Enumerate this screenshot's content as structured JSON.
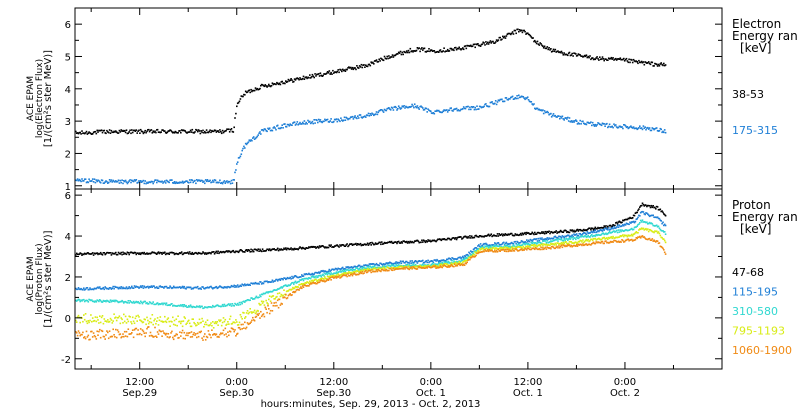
{
  "figure": {
    "xlabel": "hours:minutes, Sep. 29, 2013 - Oct.  2, 2013",
    "x_ticks": [
      {
        "x": 12,
        "time": "12:00",
        "date": "Sep.29"
      },
      {
        "x": 24,
        "time": "0:00",
        "date": "Sep.30"
      },
      {
        "x": 36,
        "time": "12:00",
        "date": "Sep.30"
      },
      {
        "x": 48,
        "time": "0:00",
        "date": "Oct. 1"
      },
      {
        "x": 60,
        "time": "12:00",
        "date": "Oct. 1"
      },
      {
        "x": 72,
        "time": "0:00",
        "date": "Oct. 2"
      }
    ],
    "x_unit": "hours from Sep. 29, 2013 00:00 UT",
    "xlim": [
      4,
      84
    ]
  },
  "chart_data": [
    {
      "type": "scatter",
      "panel": "electron",
      "ylabel_lines": [
        "ACE EPAM",
        "log(Electron Flux)",
        "[1/(cm²s ster MeV)]"
      ],
      "legend_title": [
        "Electron",
        "Energy ran",
        "[keV]"
      ],
      "ylim": [
        0.9,
        6.5
      ],
      "yticks": [
        1,
        2,
        3,
        4,
        5,
        6
      ],
      "series": [
        {
          "name": "38-53",
          "color": "#000000",
          "points": [
            [
              4,
              2.65
            ],
            [
              8,
              2.7
            ],
            [
              12,
              2.7
            ],
            [
              16,
              2.7
            ],
            [
              20,
              2.7
            ],
            [
              22,
              2.7
            ],
            [
              23.5,
              2.75
            ],
            [
              24,
              3.6
            ],
            [
              25,
              3.9
            ],
            [
              27,
              4.1
            ],
            [
              30,
              4.25
            ],
            [
              33,
              4.4
            ],
            [
              36,
              4.55
            ],
            [
              40,
              4.75
            ],
            [
              43,
              5.05
            ],
            [
              46,
              5.25
            ],
            [
              48,
              5.2
            ],
            [
              51,
              5.25
            ],
            [
              54,
              5.4
            ],
            [
              56,
              5.5
            ],
            [
              58,
              5.75
            ],
            [
              59,
              5.85
            ],
            [
              60,
              5.7
            ],
            [
              61,
              5.45
            ],
            [
              63,
              5.2
            ],
            [
              66,
              5.05
            ],
            [
              69,
              4.95
            ],
            [
              72,
              4.9
            ],
            [
              75,
              4.8
            ],
            [
              77,
              4.75
            ]
          ]
        },
        {
          "name": "175-315",
          "color": "#1f7fd6",
          "points": [
            [
              4,
              1.2
            ],
            [
              8,
              1.15
            ],
            [
              12,
              1.15
            ],
            [
              16,
              1.15
            ],
            [
              20,
              1.15
            ],
            [
              23.5,
              1.15
            ],
            [
              24,
              1.8
            ],
            [
              25,
              2.3
            ],
            [
              27,
              2.7
            ],
            [
              30,
              2.9
            ],
            [
              33,
              3.0
            ],
            [
              36,
              3.05
            ],
            [
              40,
              3.2
            ],
            [
              43,
              3.4
            ],
            [
              46,
              3.5
            ],
            [
              48,
              3.3
            ],
            [
              51,
              3.4
            ],
            [
              54,
              3.45
            ],
            [
              56,
              3.6
            ],
            [
              58,
              3.75
            ],
            [
              59,
              3.8
            ],
            [
              60,
              3.7
            ],
            [
              61,
              3.4
            ],
            [
              63,
              3.2
            ],
            [
              66,
              3.0
            ],
            [
              69,
              2.9
            ],
            [
              72,
              2.85
            ],
            [
              75,
              2.8
            ],
            [
              77,
              2.7
            ]
          ]
        }
      ]
    },
    {
      "type": "scatter",
      "panel": "proton",
      "ylabel_lines": [
        "ACE EPAM",
        "log(Proton Flux)",
        "[1/(cm²s ster MeV)]"
      ],
      "legend_title": [
        "Proton",
        "Energy ran",
        "[keV]"
      ],
      "ylim": [
        -2.5,
        6.3
      ],
      "yticks": [
        -2,
        0,
        2,
        4,
        6
      ],
      "series": [
        {
          "name": "47-68",
          "color": "#000000",
          "points": [
            [
              4,
              3.15
            ],
            [
              12,
              3.2
            ],
            [
              20,
              3.2
            ],
            [
              24,
              3.3
            ],
            [
              30,
              3.4
            ],
            [
              36,
              3.55
            ],
            [
              42,
              3.7
            ],
            [
              48,
              3.8
            ],
            [
              54,
              4.05
            ],
            [
              60,
              4.15
            ],
            [
              66,
              4.3
            ],
            [
              70,
              4.5
            ],
            [
              73,
              5.0
            ],
            [
              74,
              5.6
            ],
            [
              76,
              5.4
            ],
            [
              77,
              5.05
            ]
          ]
        },
        {
          "name": "115-195",
          "color": "#1f7fd6",
          "points": [
            [
              4,
              1.45
            ],
            [
              12,
              1.55
            ],
            [
              20,
              1.5
            ],
            [
              24,
              1.6
            ],
            [
              28,
              1.8
            ],
            [
              32,
              2.1
            ],
            [
              36,
              2.4
            ],
            [
              40,
              2.6
            ],
            [
              44,
              2.75
            ],
            [
              48,
              2.8
            ],
            [
              52,
              3.0
            ],
            [
              54,
              3.6
            ],
            [
              58,
              3.7
            ],
            [
              62,
              3.9
            ],
            [
              66,
              4.1
            ],
            [
              70,
              4.4
            ],
            [
              73,
              4.7
            ],
            [
              74,
              5.2
            ],
            [
              76,
              4.9
            ],
            [
              77,
              4.5
            ]
          ]
        },
        {
          "name": "310-580",
          "color": "#30d8d0",
          "points": [
            [
              4,
              0.9
            ],
            [
              12,
              0.8
            ],
            [
              20,
              0.55
            ],
            [
              24,
              0.7
            ],
            [
              28,
              1.3
            ],
            [
              32,
              1.9
            ],
            [
              36,
              2.25
            ],
            [
              40,
              2.5
            ],
            [
              44,
              2.6
            ],
            [
              48,
              2.65
            ],
            [
              52,
              2.85
            ],
            [
              54,
              3.5
            ],
            [
              58,
              3.55
            ],
            [
              62,
              3.75
            ],
            [
              66,
              3.95
            ],
            [
              70,
              4.2
            ],
            [
              73,
              4.4
            ],
            [
              74,
              4.8
            ],
            [
              76,
              4.5
            ],
            [
              77,
              4.15
            ]
          ]
        },
        {
          "name": "795-1193",
          "color": "#d8ec14",
          "points": [
            [
              4,
              0.0
            ],
            [
              12,
              -0.05
            ],
            [
              20,
              -0.2
            ],
            [
              24,
              -0.1
            ],
            [
              28,
              0.9
            ],
            [
              32,
              1.7
            ],
            [
              36,
              2.1
            ],
            [
              40,
              2.4
            ],
            [
              44,
              2.5
            ],
            [
              48,
              2.55
            ],
            [
              52,
              2.75
            ],
            [
              54,
              3.4
            ],
            [
              58,
              3.45
            ],
            [
              62,
              3.6
            ],
            [
              66,
              3.75
            ],
            [
              70,
              3.95
            ],
            [
              73,
              4.1
            ],
            [
              74,
              4.4
            ],
            [
              76,
              4.2
            ],
            [
              77,
              3.75
            ]
          ]
        },
        {
          "name": "1060-1900",
          "color": "#f08a14",
          "points": [
            [
              4,
              -0.85
            ],
            [
              12,
              -0.65
            ],
            [
              20,
              -0.85
            ],
            [
              24,
              -0.6
            ],
            [
              28,
              0.5
            ],
            [
              32,
              1.55
            ],
            [
              36,
              2.0
            ],
            [
              40,
              2.3
            ],
            [
              44,
              2.45
            ],
            [
              48,
              2.5
            ],
            [
              52,
              2.65
            ],
            [
              54,
              3.3
            ],
            [
              58,
              3.35
            ],
            [
              62,
              3.45
            ],
            [
              66,
              3.6
            ],
            [
              70,
              3.75
            ],
            [
              73,
              3.85
            ],
            [
              74,
              4.0
            ],
            [
              76,
              3.75
            ],
            [
              77,
              3.15
            ]
          ]
        }
      ]
    }
  ]
}
